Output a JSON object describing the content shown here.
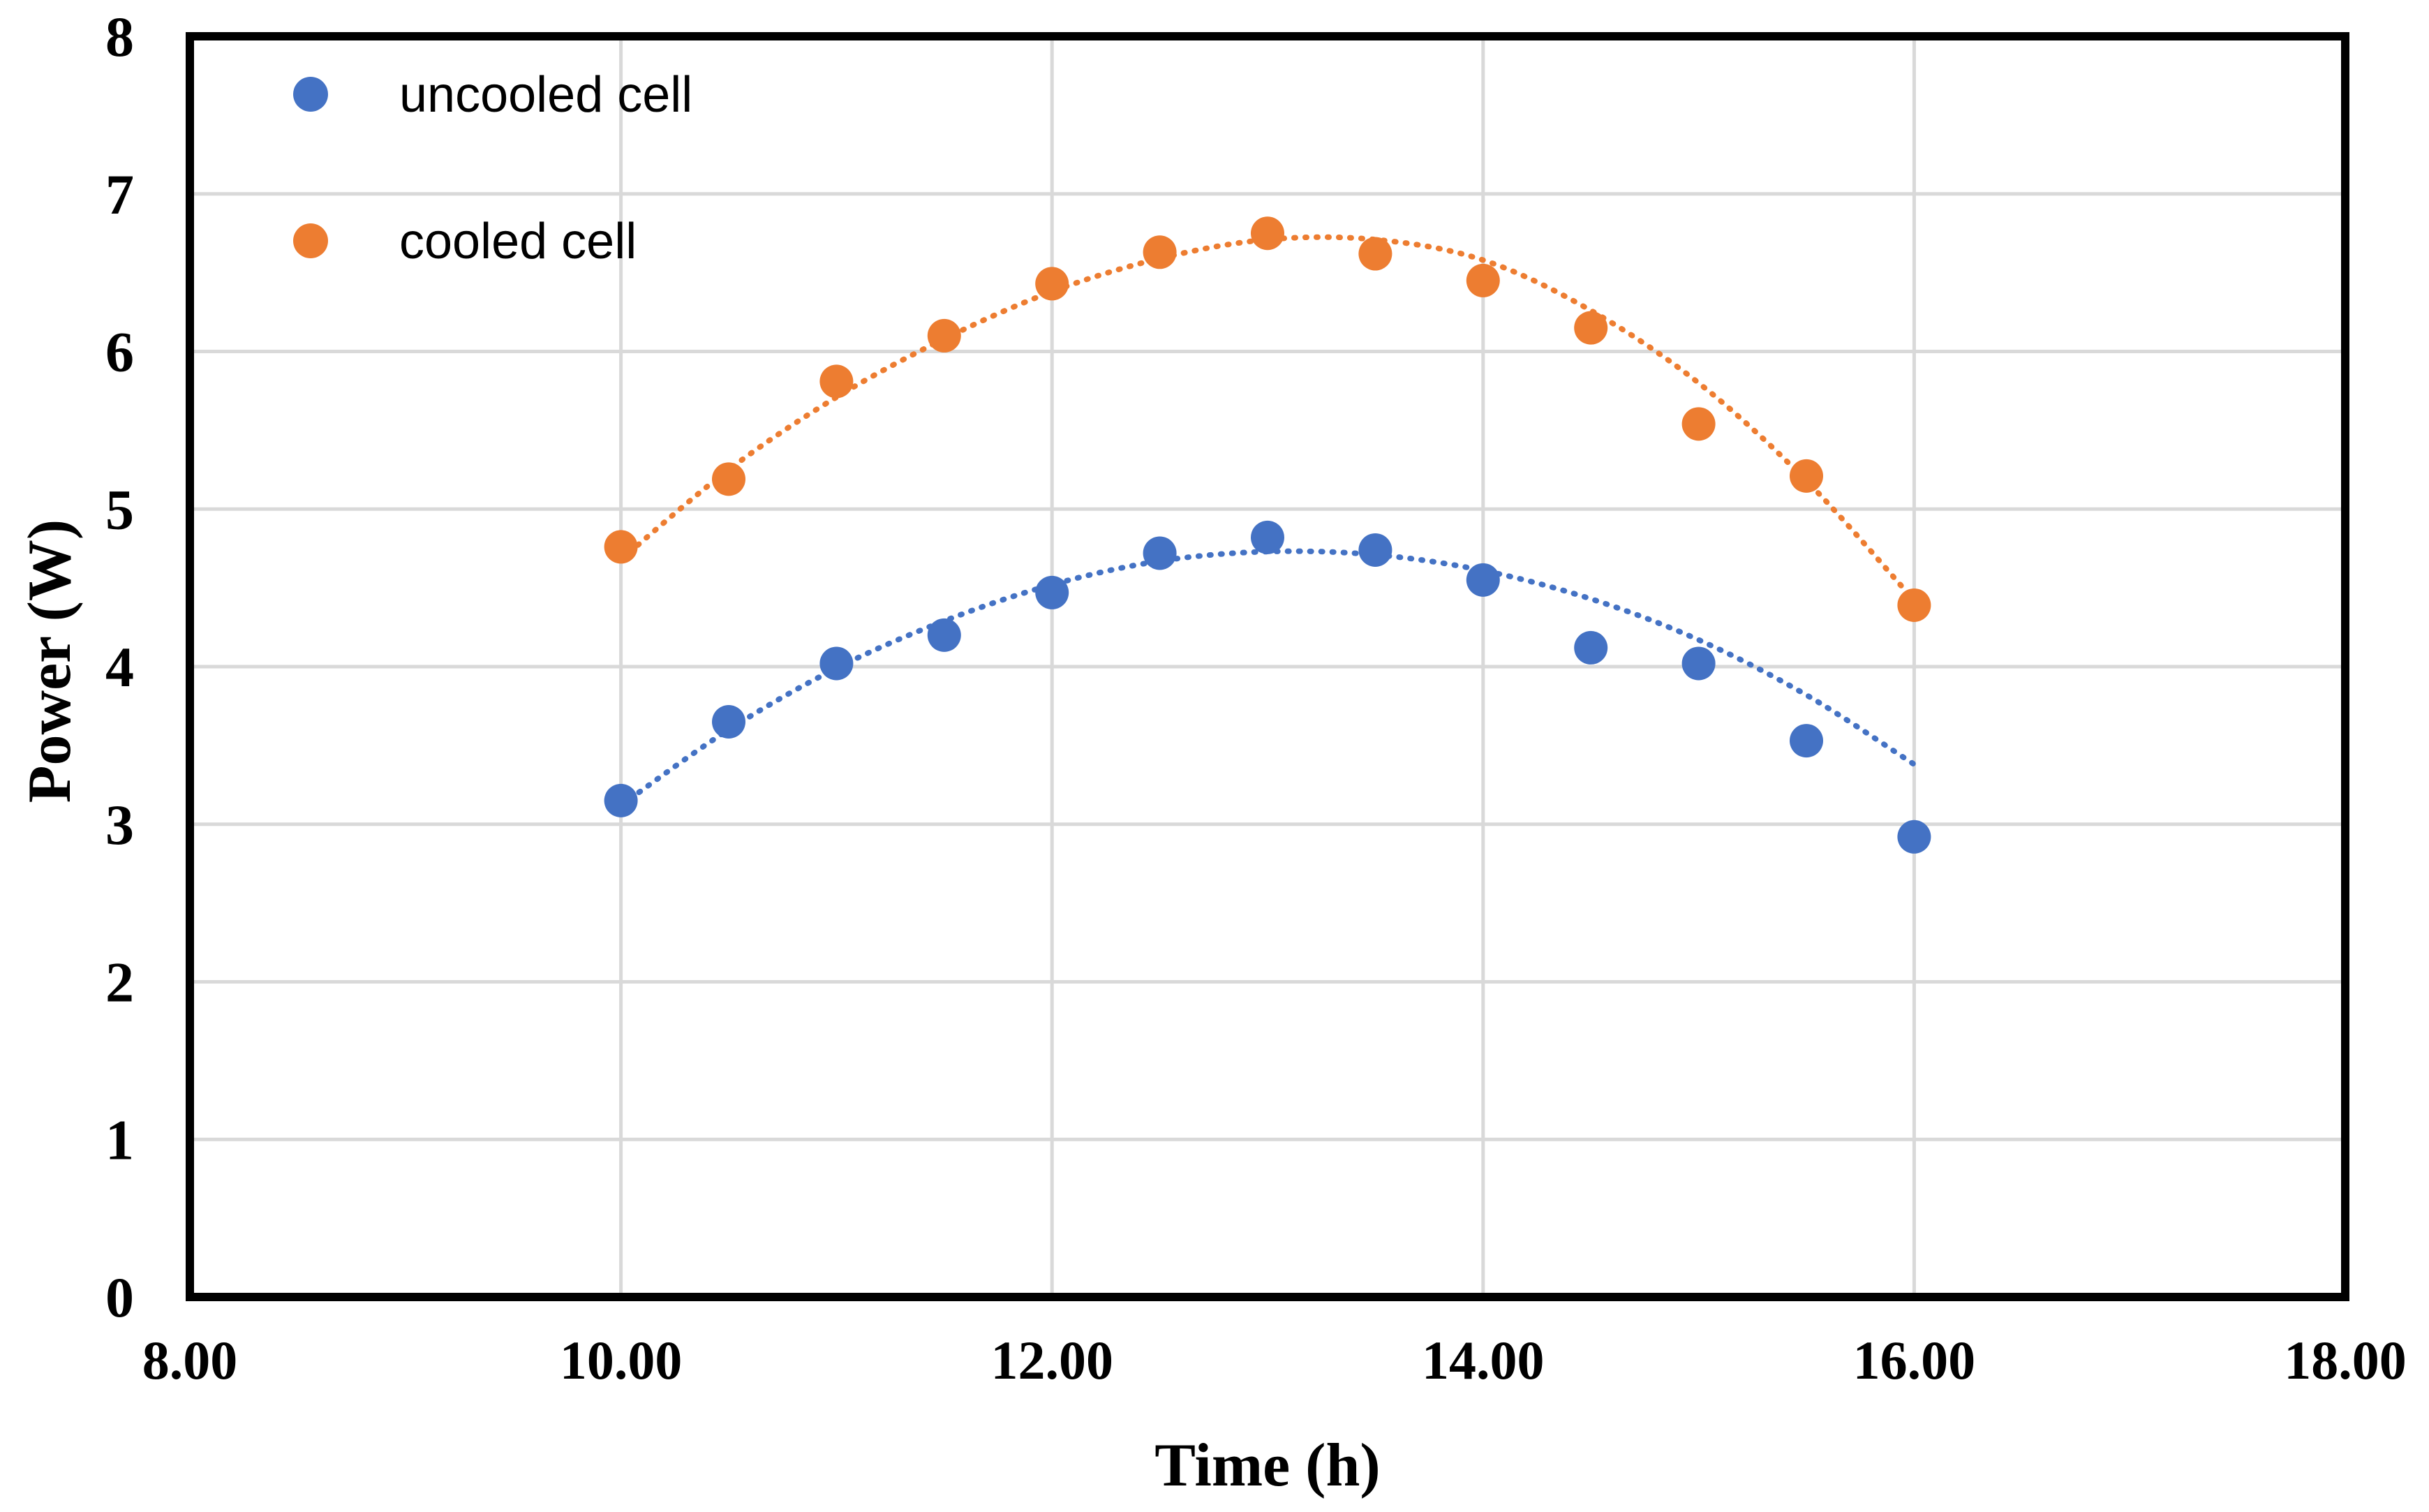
{
  "chart_data": {
    "type": "scatter",
    "title": "",
    "xlabel": "Time (h)",
    "ylabel": "Power (W)",
    "xlim": [
      8,
      18
    ],
    "ylim": [
      0,
      8
    ],
    "xticks": [
      8,
      10,
      12,
      14,
      16,
      18
    ],
    "xtick_labels": [
      "8.00",
      "10.00",
      "12.00",
      "14.00",
      "16.00",
      "18.00"
    ],
    "yticks": [
      0,
      1,
      2,
      3,
      4,
      5,
      6,
      7,
      8
    ],
    "ytick_labels": [
      "0",
      "1",
      "2",
      "3",
      "4",
      "5",
      "6",
      "7",
      "8"
    ],
    "grid": true,
    "legend_position": "top-left",
    "trendline": "polynomial (dotted)",
    "x": [
      10,
      10.5,
      11,
      11.5,
      12,
      12.5,
      13,
      13.5,
      14,
      14.5,
      15,
      15.5,
      16
    ],
    "series": [
      {
        "name": "uncooled cell",
        "color": "#4472C4",
        "values": [
          3.15,
          3.65,
          4.02,
          4.2,
          4.47,
          4.72,
          4.82,
          4.74,
          4.55,
          4.12,
          4.02,
          3.53,
          2.92
        ],
        "trend_values": [
          3.12,
          3.6,
          3.99,
          4.29,
          4.52,
          4.67,
          4.73,
          4.71,
          4.61,
          4.43,
          4.17,
          3.82,
          3.38
        ]
      },
      {
        "name": "cooled cell",
        "color": "#ED7D31",
        "values": [
          4.76,
          5.19,
          5.81,
          6.1,
          6.43,
          6.63,
          6.75,
          6.62,
          6.45,
          6.15,
          5.54,
          5.21,
          4.39
        ],
        "trend_values": [
          4.68,
          5.25,
          5.71,
          6.08,
          6.38,
          6.59,
          6.71,
          6.71,
          6.58,
          6.26,
          5.8,
          5.18,
          4.42
        ]
      }
    ]
  }
}
